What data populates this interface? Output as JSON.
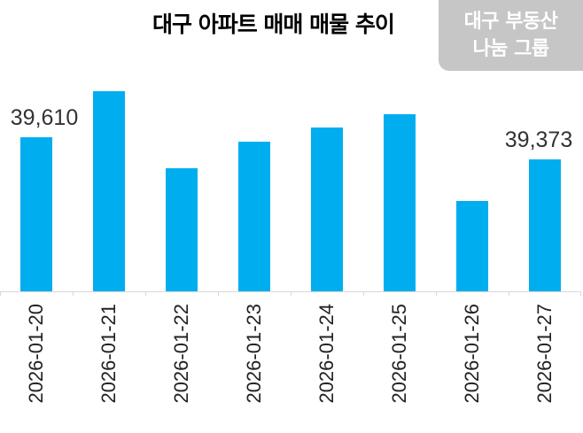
{
  "header": {
    "title": "대구 아파트 매매 매물 추이"
  },
  "watermark": {
    "line1": "대구 부동산",
    "line2": "나눔 그룹"
  },
  "colors": {
    "bar": "#00aeef",
    "axis": "#d9d9d9",
    "watermark_bg": "#c6c6c6"
  },
  "chart_data": {
    "type": "bar",
    "title": "대구 아파트 매매 매물 추이",
    "xlabel": "",
    "ylabel": "",
    "categories": [
      "2026-01-20",
      "2026-01-21",
      "2026-01-22",
      "2026-01-23",
      "2026-01-24",
      "2026-01-25",
      "2026-01-26",
      "2026-01-27"
    ],
    "values": [
      39610,
      40103,
      39278,
      39563,
      39714,
      39856,
      38927,
      39373
    ],
    "data_labels": [
      {
        "index": 0,
        "text": "39,610"
      },
      {
        "index": 7,
        "text": "39,373"
      }
    ],
    "ylim": [
      37960,
      40300
    ],
    "grid": false,
    "legend": "none",
    "x_tick_rotation": -90
  }
}
